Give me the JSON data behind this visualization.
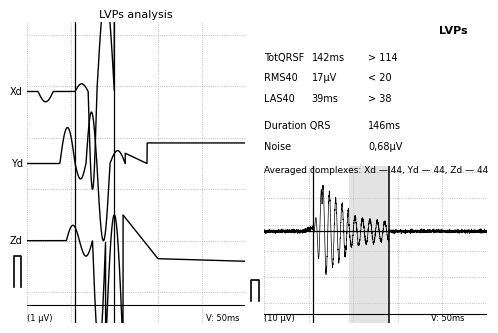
{
  "title": "LVPs analysis",
  "background_color": "#ffffff",
  "info": {
    "header": "LVPs",
    "rows": [
      [
        "TotQRSF",
        "142ms",
        "> 114"
      ],
      [
        "RMS40",
        "17μV",
        "< 20"
      ],
      [
        "LAS40",
        "39ms",
        "> 38"
      ]
    ],
    "dur_label": "Duration QRS",
    "dur_val": "146ms",
    "noise_label": "Noise",
    "noise_val": "0,68μV",
    "avg": "Averaged complexes: Xd — 44, Yd — 44, Zd — 44"
  },
  "left_label_bottom": "(1 μV)",
  "left_label_bottom_right": "V: 50ms",
  "right_label_bottom": "(10 μV)",
  "right_label_bottom_right": "V: 50ms",
  "xd_label": "Xd",
  "yd_label": "Yd",
  "zd_label": "Zd"
}
